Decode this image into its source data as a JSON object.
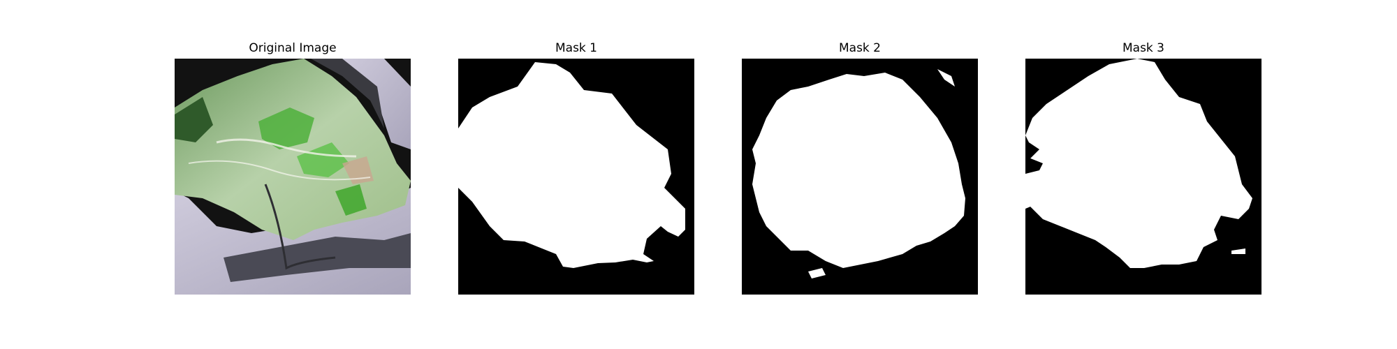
{
  "figure": {
    "panels": [
      {
        "title": "Original Image",
        "kind": "photo"
      },
      {
        "title": "Mask 1",
        "kind": "mask"
      },
      {
        "title": "Mask 2",
        "kind": "mask"
      },
      {
        "title": "Mask 3",
        "kind": "mask"
      }
    ],
    "colors": {
      "mask_background": "#000000",
      "mask_foreground": "#ffffff",
      "terrain_green": "#9ab88c",
      "terrain_lavender": "#bdb9cc"
    }
  }
}
